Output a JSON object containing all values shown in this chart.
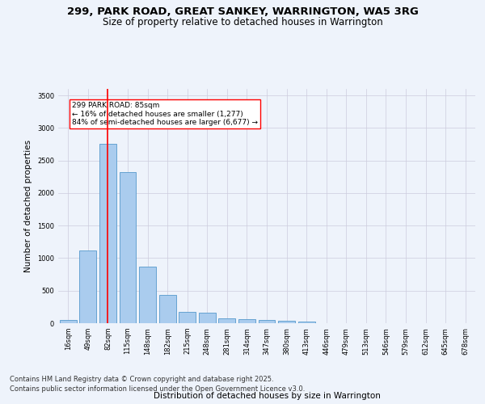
{
  "title_line1": "299, PARK ROAD, GREAT SANKEY, WARRINGTON, WA5 3RG",
  "title_line2": "Size of property relative to detached houses in Warrington",
  "xlabel": "Distribution of detached houses by size in Warrington",
  "ylabel": "Number of detached properties",
  "categories": [
    "16sqm",
    "49sqm",
    "82sqm",
    "115sqm",
    "148sqm",
    "182sqm",
    "215sqm",
    "248sqm",
    "281sqm",
    "314sqm",
    "347sqm",
    "380sqm",
    "413sqm",
    "446sqm",
    "479sqm",
    "513sqm",
    "546sqm",
    "579sqm",
    "612sqm",
    "645sqm",
    "678sqm"
  ],
  "values": [
    55,
    1120,
    2760,
    2320,
    870,
    430,
    175,
    160,
    80,
    60,
    45,
    35,
    30,
    5,
    5,
    0,
    0,
    0,
    0,
    0,
    0
  ],
  "bar_color": "#aaccee",
  "bar_edge_color": "#5599cc",
  "bar_edge_width": 0.6,
  "vline_x": 2,
  "vline_color": "red",
  "vline_linewidth": 1.2,
  "annotation_text": "299 PARK ROAD: 85sqm\n← 16% of detached houses are smaller (1,277)\n84% of semi-detached houses are larger (6,677) →",
  "ylim": [
    0,
    3600
  ],
  "yticks": [
    0,
    500,
    1000,
    1500,
    2000,
    2500,
    3000,
    3500
  ],
  "bg_color": "#eef3fb",
  "plot_bg_color": "#eef3fb",
  "grid_color": "#ccccdd",
  "footer_line1": "Contains HM Land Registry data © Crown copyright and database right 2025.",
  "footer_line2": "Contains public sector information licensed under the Open Government Licence v3.0.",
  "title_fontsize": 9.5,
  "subtitle_fontsize": 8.5,
  "axis_label_fontsize": 7.5,
  "tick_fontsize": 6,
  "annotation_fontsize": 6.5,
  "footer_fontsize": 6
}
